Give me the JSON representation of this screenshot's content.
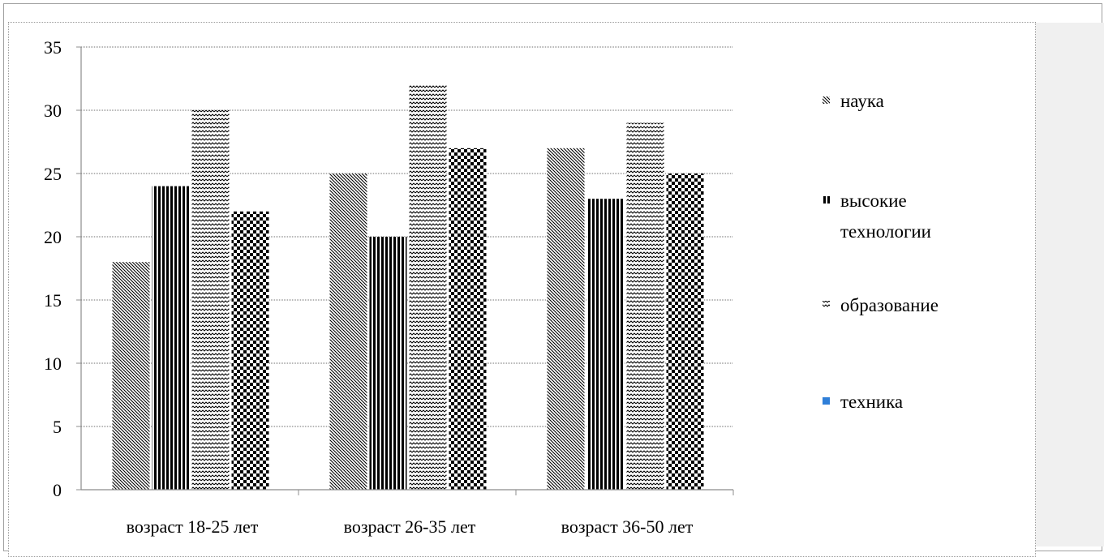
{
  "chart_data": {
    "type": "bar",
    "categories": [
      "возраст 18-25 лет",
      "возраст 26-35 лет",
      "возраст 36-50 лет"
    ],
    "series": [
      {
        "name": "наука",
        "values": [
          18,
          25,
          27
        ],
        "pattern": "diagonal"
      },
      {
        "name": "высокие технологии",
        "values": [
          24,
          20,
          23
        ],
        "pattern": "vertical-stripes"
      },
      {
        "name": "образование",
        "values": [
          30,
          32,
          29
        ],
        "pattern": "wave"
      },
      {
        "name": "техника",
        "values": [
          22,
          27,
          25
        ],
        "pattern": "checker"
      }
    ],
    "yticks": [
      "0",
      "5",
      "10",
      "15",
      "20",
      "25",
      "30",
      "35"
    ],
    "ylim": [
      0,
      35
    ],
    "grid": true,
    "legend_position": "right",
    "colors": {
      "bars": "#000000",
      "grid": "#8c8c8c",
      "background": "#ffffff",
      "legend_marker_last": "#2f7fd8"
    }
  }
}
